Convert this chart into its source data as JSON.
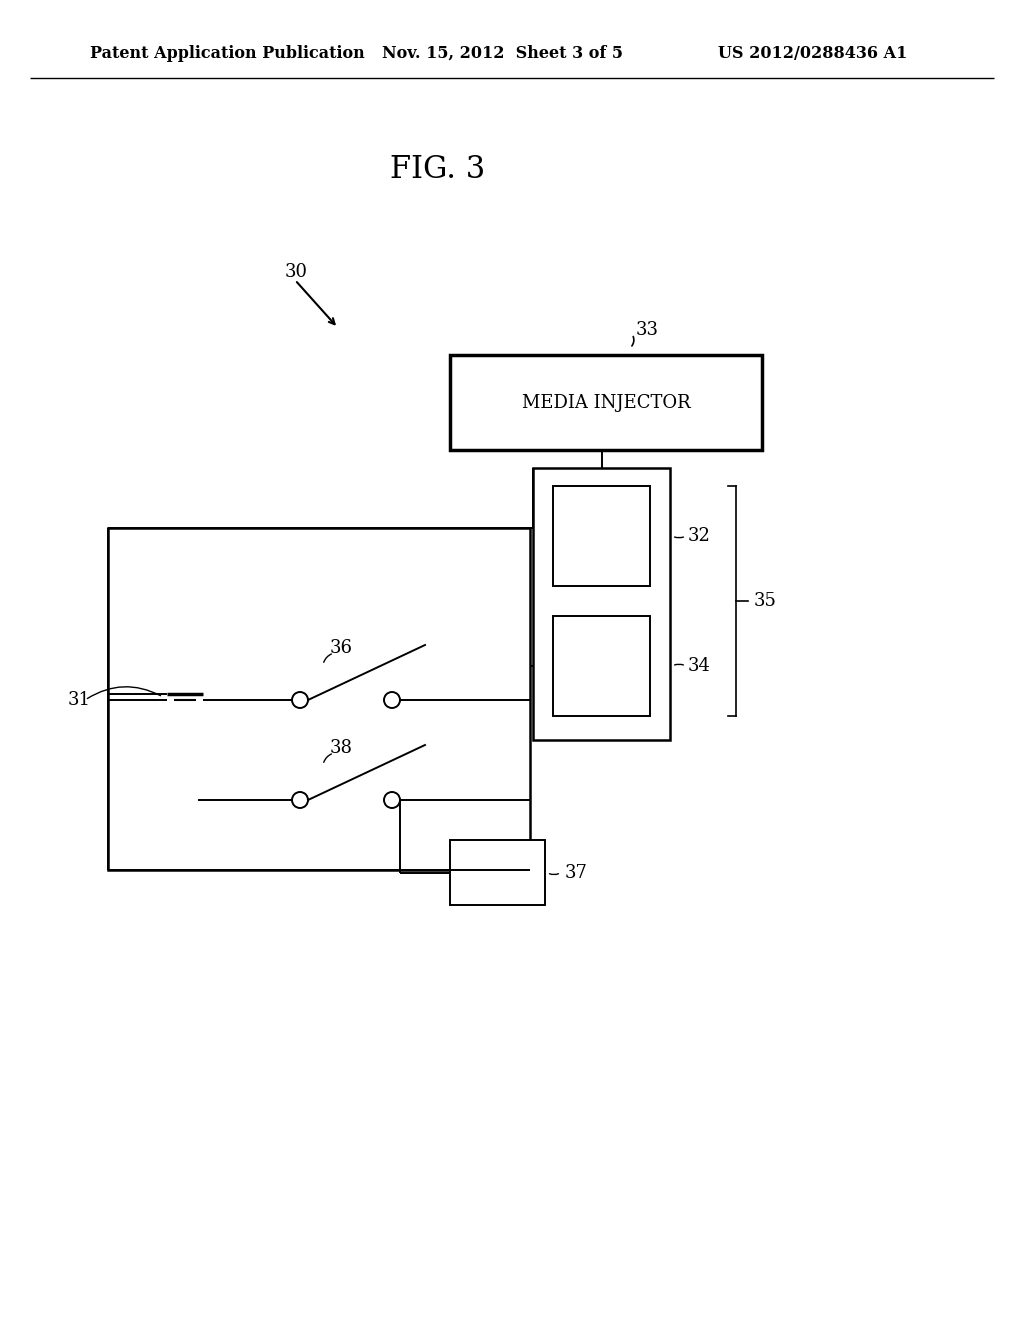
{
  "background_color": "#ffffff",
  "fig_title": "FIG. 3",
  "header_left": "Patent Application Publication",
  "header_mid": "Nov. 15, 2012  Sheet 3 of 5",
  "header_right": "US 2012/0288436 A1",
  "label_30": "30",
  "label_31": "31",
  "label_32": "32",
  "label_33": "33",
  "label_34": "34",
  "label_35": "35",
  "label_36": "36",
  "label_37": "37",
  "label_38": "38",
  "media_injector_text": "MEDIA INJECTOR",
  "lw_main": 1.8,
  "lw_thick": 2.5,
  "lw_thin": 1.4,
  "fs_header": 11.5,
  "fs_fig": 22,
  "fs_label": 13
}
